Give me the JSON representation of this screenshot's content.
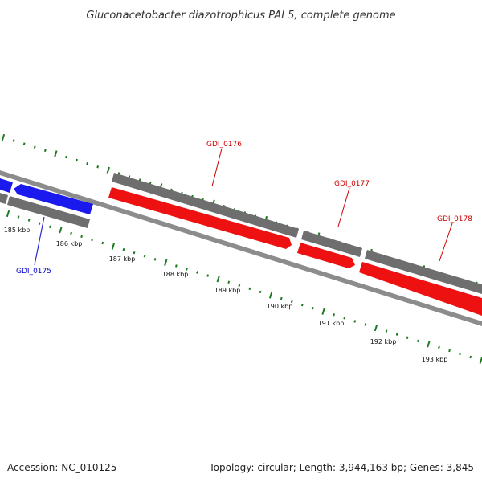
{
  "title": "Gluconacetobacter diazotrophicus PAI 5, complete genome",
  "footer": {
    "accession": "Accession: NC_010125",
    "summary": "Topology: circular; Length: 3,944,163 bp; Genes: 3,845"
  },
  "colors": {
    "backbone": "#8c8c8c",
    "gene_block": "#6e6e6e",
    "forward_strand": "#ee1111",
    "reverse_strand": "#1a1aee",
    "tick": "#1f7a1f",
    "label_forward": "#cc0000",
    "label_reverse": "#0000cc"
  },
  "scale_ticks": [
    {
      "label": "185 kbp"
    },
    {
      "label": "186 kbp"
    },
    {
      "label": "187 kbp"
    },
    {
      "label": "188 kbp"
    },
    {
      "label": "189 kbp"
    },
    {
      "label": "190 kbp"
    },
    {
      "label": "191 kbp"
    },
    {
      "label": "192 kbp"
    },
    {
      "label": "193 kbp"
    }
  ],
  "genes": [
    {
      "name": "GDI_0175",
      "strand": "reverse"
    },
    {
      "name": "GDI_0176",
      "strand": "forward"
    },
    {
      "name": "GDI_0177",
      "strand": "forward"
    },
    {
      "name": "GDI_0178",
      "strand": "forward"
    }
  ]
}
